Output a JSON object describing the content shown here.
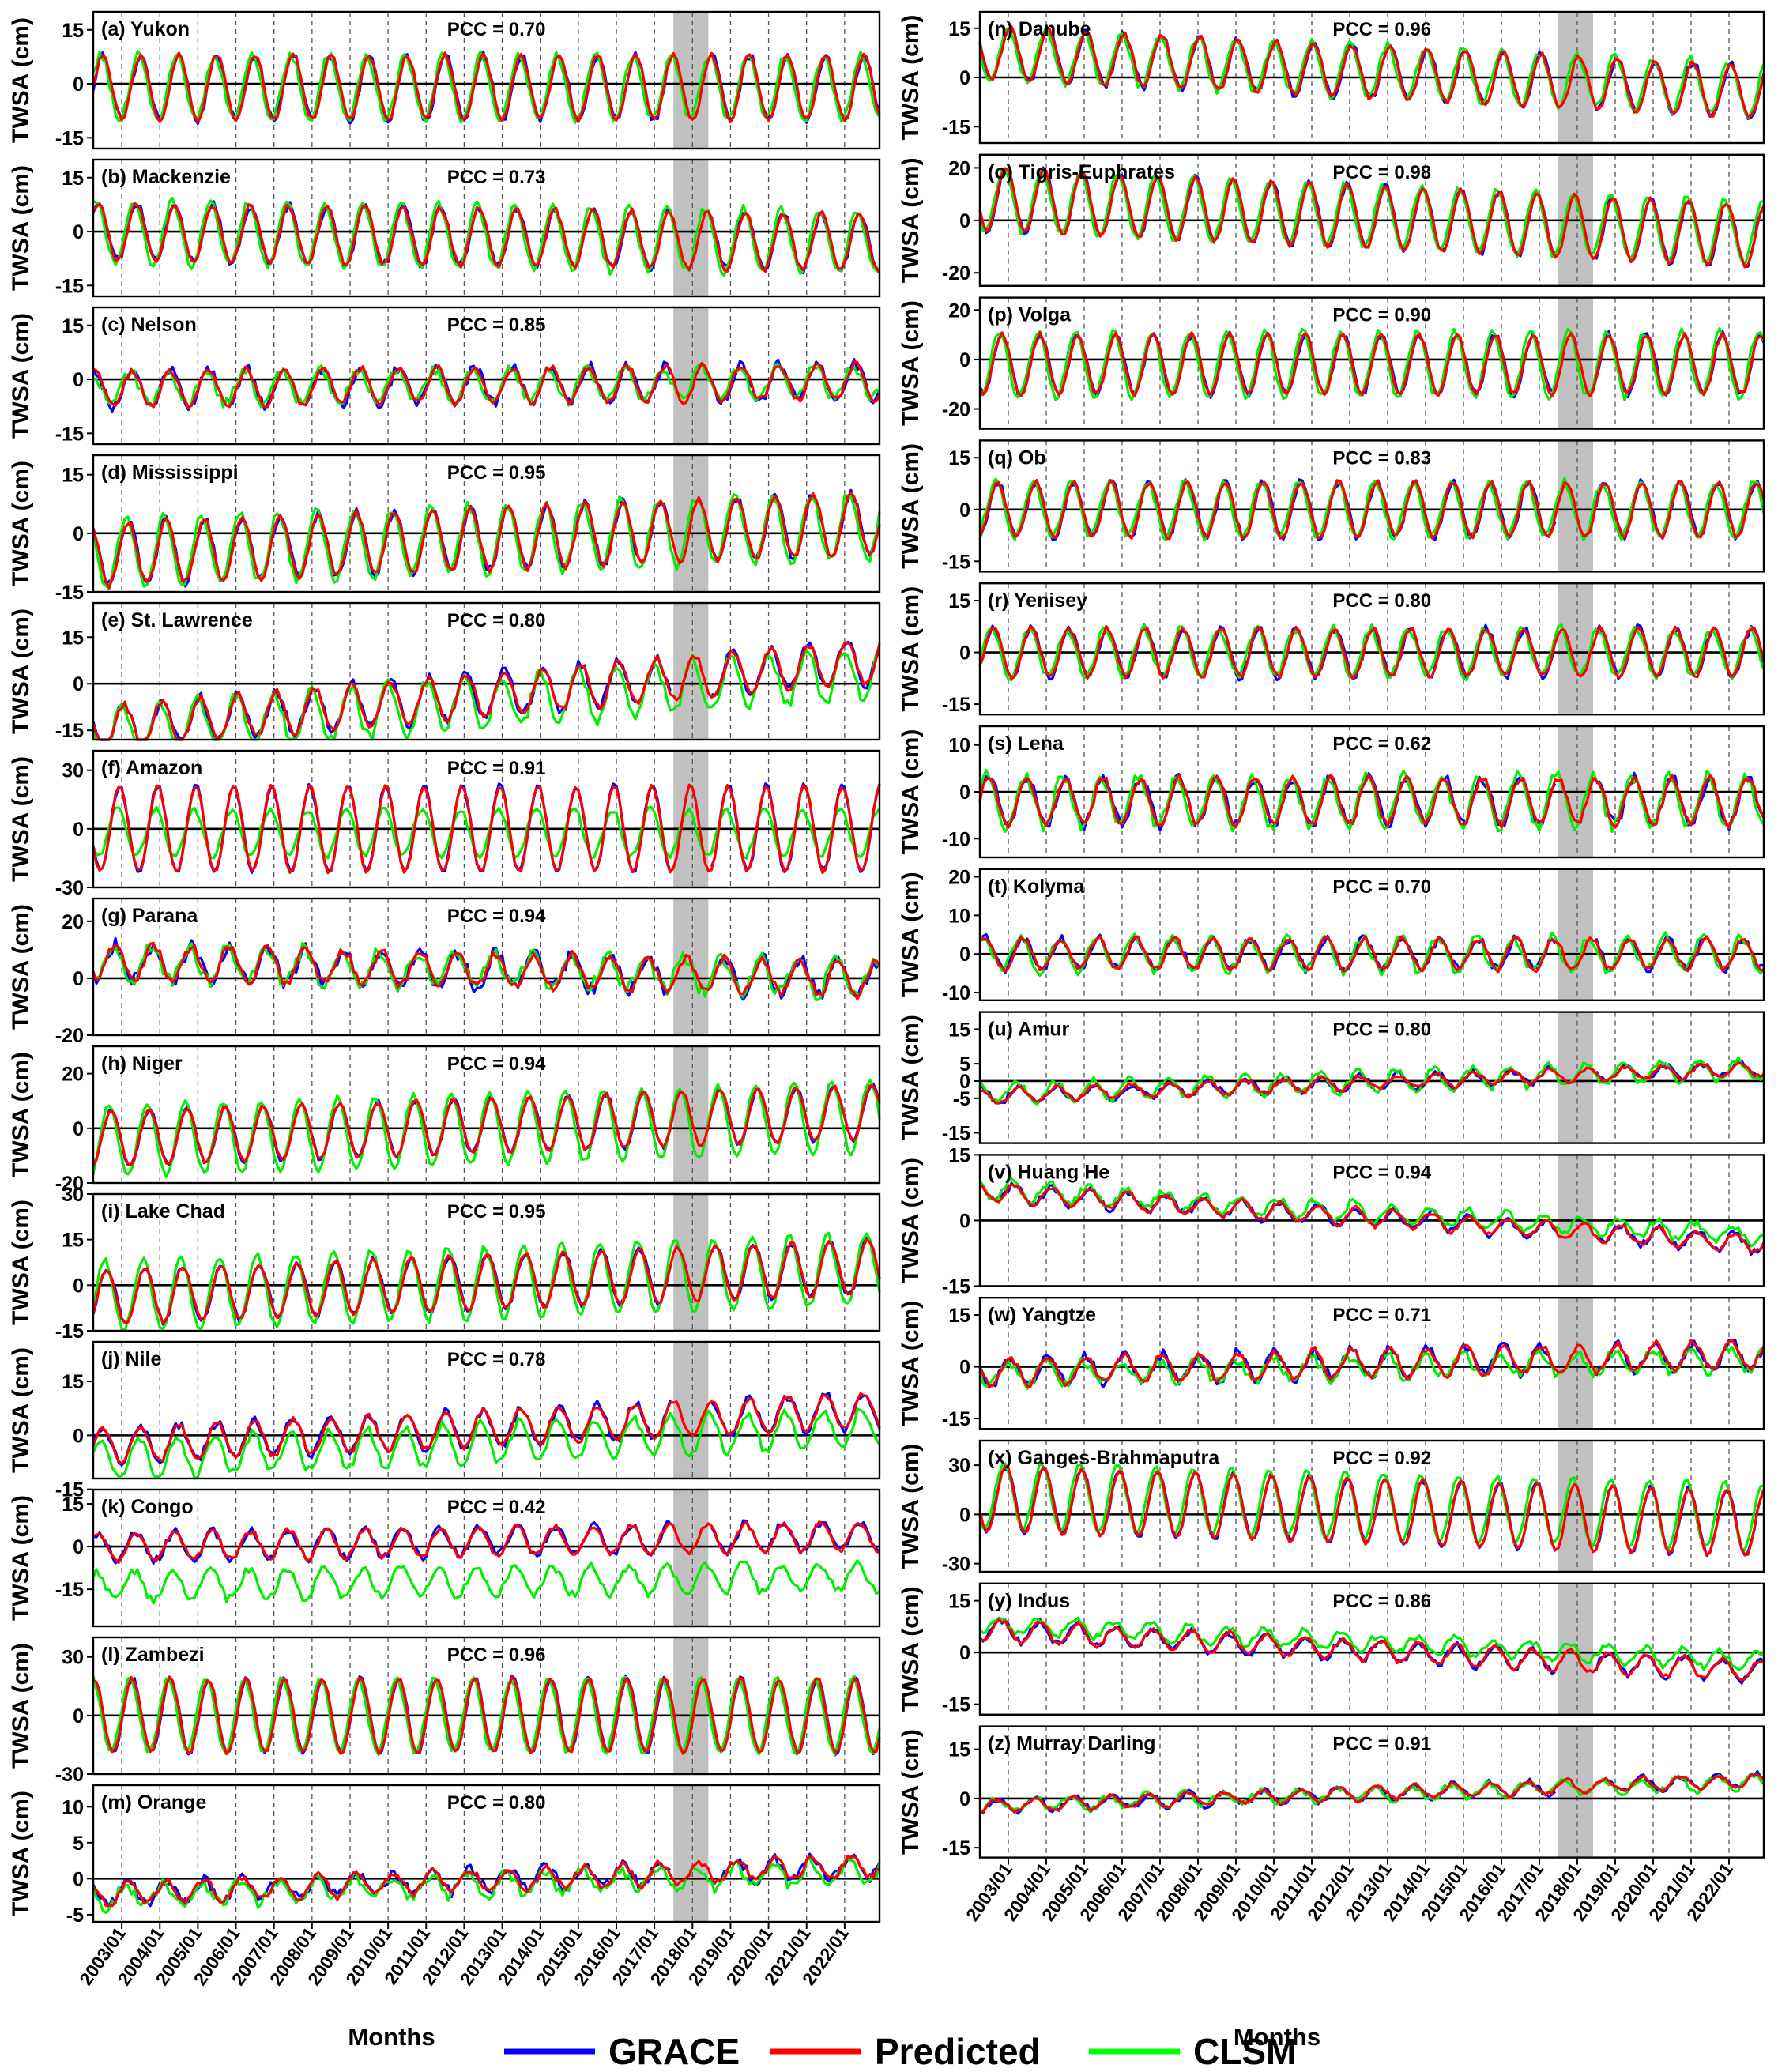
{
  "chart_data": {
    "type": "line",
    "ylabel": "TWSA (cm)",
    "xlabel": "Months",
    "x_range": [
      "2002/04",
      "2022/12"
    ],
    "x_ticks": [
      "2003/01",
      "2004/01",
      "2005/01",
      "2006/01",
      "2007/01",
      "2008/01",
      "2009/01",
      "2010/01",
      "2011/01",
      "2012/01",
      "2013/01",
      "2014/01",
      "2015/01",
      "2016/01",
      "2017/01",
      "2018/01",
      "2019/01",
      "2020/01",
      "2021/01",
      "2022/01"
    ],
    "gap_shading": [
      "2017/07",
      "2018/06"
    ],
    "zero_line": true,
    "legend": {
      "placement": "bottom-center",
      "items": [
        {
          "name": "GRACE",
          "color": "#0000ff"
        },
        {
          "name": "Predicted",
          "color": "#ff0000"
        },
        {
          "name": "CLSM",
          "color": "#00ff00"
        }
      ]
    },
    "panels": [
      {
        "id": "a",
        "label": "(a) Yukon",
        "pcc": "PCC = 0.70",
        "yticks": [
          15,
          0,
          -15
        ],
        "ylim": [
          -18,
          20
        ],
        "amp": 9,
        "trend": 0,
        "offset": -1,
        "clsm_bias": 0,
        "clsm_amp": 1.0,
        "noise": 1.2
      },
      {
        "id": "b",
        "label": "(b) Mackenzie",
        "pcc": "PCC = 0.73",
        "yticks": [
          15,
          0,
          -15
        ],
        "ylim": [
          -18,
          20
        ],
        "amp": 8,
        "trend": -3,
        "offset": -1,
        "clsm_bias": 0,
        "clsm_amp": 1.1,
        "noise": 1.2
      },
      {
        "id": "c",
        "label": "(c) Nelson",
        "pcc": "PCC = 0.85",
        "yticks": [
          15,
          0,
          -15
        ],
        "ylim": [
          -18,
          20
        ],
        "amp": 5,
        "trend": 2,
        "offset": -2,
        "clsm_bias": 0,
        "clsm_amp": 0.9,
        "noise": 1.5
      },
      {
        "id": "d",
        "label": "(d) Mississippi",
        "pcc": "PCC = 0.95",
        "yticks": [
          15,
          0,
          -15
        ],
        "ylim": [
          -15,
          20
        ],
        "amp": 8,
        "trend": 8,
        "offset": -3,
        "clsm_bias": 0,
        "clsm_amp": 1.1,
        "noise": 1.2
      },
      {
        "id": "e",
        "label": "(e) St. Lawrence",
        "pcc": "PCC = 0.80",
        "yticks": [
          15,
          0,
          -15
        ],
        "ylim": [
          -18,
          26
        ],
        "amp": 7,
        "trend": 22,
        "offset": -8,
        "clsm_bias": -2,
        "clsm_amp": 1.2,
        "noise": 1.8
      },
      {
        "id": "f",
        "label": "(f) Amazon",
        "pcc": "PCC = 0.91",
        "yticks": [
          30,
          0,
          -30
        ],
        "ylim": [
          -30,
          40
        ],
        "amp": 22,
        "trend": 0,
        "offset": 0,
        "clsm_bias": -2,
        "clsm_amp": 0.55,
        "noise": 1.5
      },
      {
        "id": "g",
        "label": "(g) Parana",
        "pcc": "PCC = 0.94",
        "yticks": [
          20,
          0,
          -20
        ],
        "ylim": [
          -20,
          28
        ],
        "amp": 6,
        "trend": -6,
        "offset": 4,
        "clsm_bias": 0,
        "clsm_amp": 1.0,
        "noise": 2.5
      },
      {
        "id": "h",
        "label": "(h) Niger",
        "pcc": "PCC = 0.94",
        "yticks": [
          20,
          0,
          -20
        ],
        "ylim": [
          -20,
          30
        ],
        "amp": 10,
        "trend": 10,
        "offset": -1,
        "clsm_bias": -1,
        "clsm_amp": 1.3,
        "noise": 1.0
      },
      {
        "id": "i",
        "label": "(i) Lake Chad",
        "pcc": "PCC = 0.95",
        "yticks": [
          30,
          15,
          0,
          -15
        ],
        "ylim": [
          -15,
          30
        ],
        "amp": 9,
        "trend": 10,
        "offset": -1,
        "clsm_bias": 0,
        "clsm_amp": 1.3,
        "noise": 1.0
      },
      {
        "id": "j",
        "label": "(j) Nile",
        "pcc": "PCC = 0.78",
        "yticks": [
          15,
          0,
          -15
        ],
        "ylim": [
          -12,
          26
        ],
        "amp": 5,
        "trend": 10,
        "offset": 0,
        "clsm_bias": -4,
        "clsm_amp": 1.1,
        "noise": 1.2
      },
      {
        "id": "k",
        "label": "(k) Congo",
        "pcc": "PCC = 0.42",
        "yticks": [
          15,
          0,
          -15
        ],
        "ylim": [
          -28,
          20
        ],
        "amp": 5,
        "trend": 4,
        "offset": 1,
        "clsm_bias": -14,
        "clsm_amp": 1.0,
        "noise": 1.5
      },
      {
        "id": "l",
        "label": "(l) Zambezi",
        "pcc": "PCC = 0.96",
        "yticks": [
          30,
          0,
          -30
        ],
        "ylim": [
          -30,
          40
        ],
        "amp": 19,
        "trend": 0,
        "offset": 0,
        "clsm_bias": 0,
        "clsm_amp": 1.0,
        "noise": 1.5
      },
      {
        "id": "m",
        "label": "(m) Orange",
        "pcc": "PCC = 0.80",
        "yticks": [
          10,
          5,
          0,
          -5
        ],
        "ylim": [
          -6,
          13
        ],
        "amp": 1.5,
        "trend": 4,
        "offset": -1,
        "clsm_bias": -0.5,
        "clsm_amp": 1.0,
        "noise": 0.8
      },
      {
        "id": "n",
        "label": "(n) Danube",
        "pcc": "PCC = 0.96",
        "yticks": [
          15,
          0,
          -15
        ],
        "ylim": [
          -20,
          20
        ],
        "amp": 8,
        "trend": -12,
        "offset": 4,
        "clsm_bias": 0,
        "clsm_amp": 1.0,
        "noise": 1.2
      },
      {
        "id": "o",
        "label": "(o) Tigris-Euphrates",
        "pcc": "PCC = 0.98",
        "yticks": [
          20,
          0,
          -20
        ],
        "ylim": [
          -25,
          25
        ],
        "amp": 12,
        "trend": -14,
        "offset": 4,
        "clsm_bias": 0,
        "clsm_amp": 1.0,
        "noise": 1.2
      },
      {
        "id": "p",
        "label": "(p) Volga",
        "pcc": "PCC = 0.90",
        "yticks": [
          20,
          0,
          -20
        ],
        "ylim": [
          -28,
          25
        ],
        "amp": 12,
        "trend": 0,
        "offset": -2,
        "clsm_bias": 0,
        "clsm_amp": 1.1,
        "noise": 1.5
      },
      {
        "id": "q",
        "label": "(q) Ob",
        "pcc": "PCC = 0.83",
        "yticks": [
          15,
          0,
          -15
        ],
        "ylim": [
          -18,
          20
        ],
        "amp": 8,
        "trend": 0,
        "offset": 0,
        "clsm_bias": 0,
        "clsm_amp": 1.0,
        "noise": 1.2
      },
      {
        "id": "r",
        "label": "(r) Yenisey",
        "pcc": "PCC = 0.80",
        "yticks": [
          15,
          0,
          -15
        ],
        "ylim": [
          -18,
          20
        ],
        "amp": 7,
        "trend": 0,
        "offset": 0,
        "clsm_bias": 0,
        "clsm_amp": 1.0,
        "noise": 1.2
      },
      {
        "id": "s",
        "label": "(s) Lena",
        "pcc": "PCC = 0.62",
        "yticks": [
          10,
          0,
          -10
        ],
        "ylim": [
          -14,
          14
        ],
        "amp": 5,
        "trend": 0,
        "offset": -2,
        "clsm_bias": 0,
        "clsm_amp": 1.1,
        "noise": 1.2
      },
      {
        "id": "t",
        "label": "(t) Kolyma",
        "pcc": "PCC = 0.70",
        "yticks": [
          20,
          10,
          0,
          -10
        ],
        "ylim": [
          -12,
          22
        ],
        "amp": 4,
        "trend": 0,
        "offset": 0,
        "clsm_bias": 0,
        "clsm_amp": 1.1,
        "noise": 1.2
      },
      {
        "id": "u",
        "label": "(u) Amur",
        "pcc": "PCC = 0.80",
        "yticks": [
          15,
          5,
          0,
          -5,
          -15
        ],
        "ylim": [
          -18,
          20
        ],
        "amp": 2,
        "trend": 8,
        "offset": -2,
        "clsm_bias": 0.5,
        "clsm_amp": 1.5,
        "noise": 1.0
      },
      {
        "id": "v",
        "label": "(v) Huang He",
        "pcc": "PCC = 0.94",
        "yticks": [
          15,
          0,
          -15
        ],
        "ylim": [
          -15,
          15
        ],
        "amp": 2,
        "trend": -12,
        "offset": 3,
        "clsm_bias": 1,
        "clsm_amp": 1.0,
        "noise": 0.8
      },
      {
        "id": "w",
        "label": "(w) Yangtze",
        "pcc": "PCC = 0.71",
        "yticks": [
          15,
          0,
          -15
        ],
        "ylim": [
          -18,
          20
        ],
        "amp": 4,
        "trend": 5,
        "offset": 0,
        "clsm_bias": -1,
        "clsm_amp": 0.8,
        "noise": 1.5
      },
      {
        "id": "x",
        "label": "(x) Ganges-Brahmaputra",
        "pcc": "PCC = 0.92",
        "yticks": [
          30,
          0,
          -30
        ],
        "ylim": [
          -35,
          45
        ],
        "amp": 20,
        "trend": -15,
        "offset": 5,
        "clsm_bias": 3,
        "clsm_amp": 1.0,
        "noise": 1.5
      },
      {
        "id": "y",
        "label": "(y) Indus",
        "pcc": "PCC = 0.86",
        "yticks": [
          15,
          0,
          -15
        ],
        "ylim": [
          -18,
          20
        ],
        "amp": 3,
        "trend": -12,
        "offset": 3,
        "clsm_bias": 2,
        "clsm_amp": 0.8,
        "noise": 1.0
      },
      {
        "id": "z",
        "label": "(z) Murray Darling",
        "pcc": "PCC = 0.91",
        "yticks": [
          15,
          0,
          -15
        ],
        "ylim": [
          -18,
          22
        ],
        "amp": 2,
        "trend": 8,
        "offset": 0,
        "clsm_bias": 0,
        "clsm_amp": 1.0,
        "noise": 1.0
      }
    ]
  }
}
